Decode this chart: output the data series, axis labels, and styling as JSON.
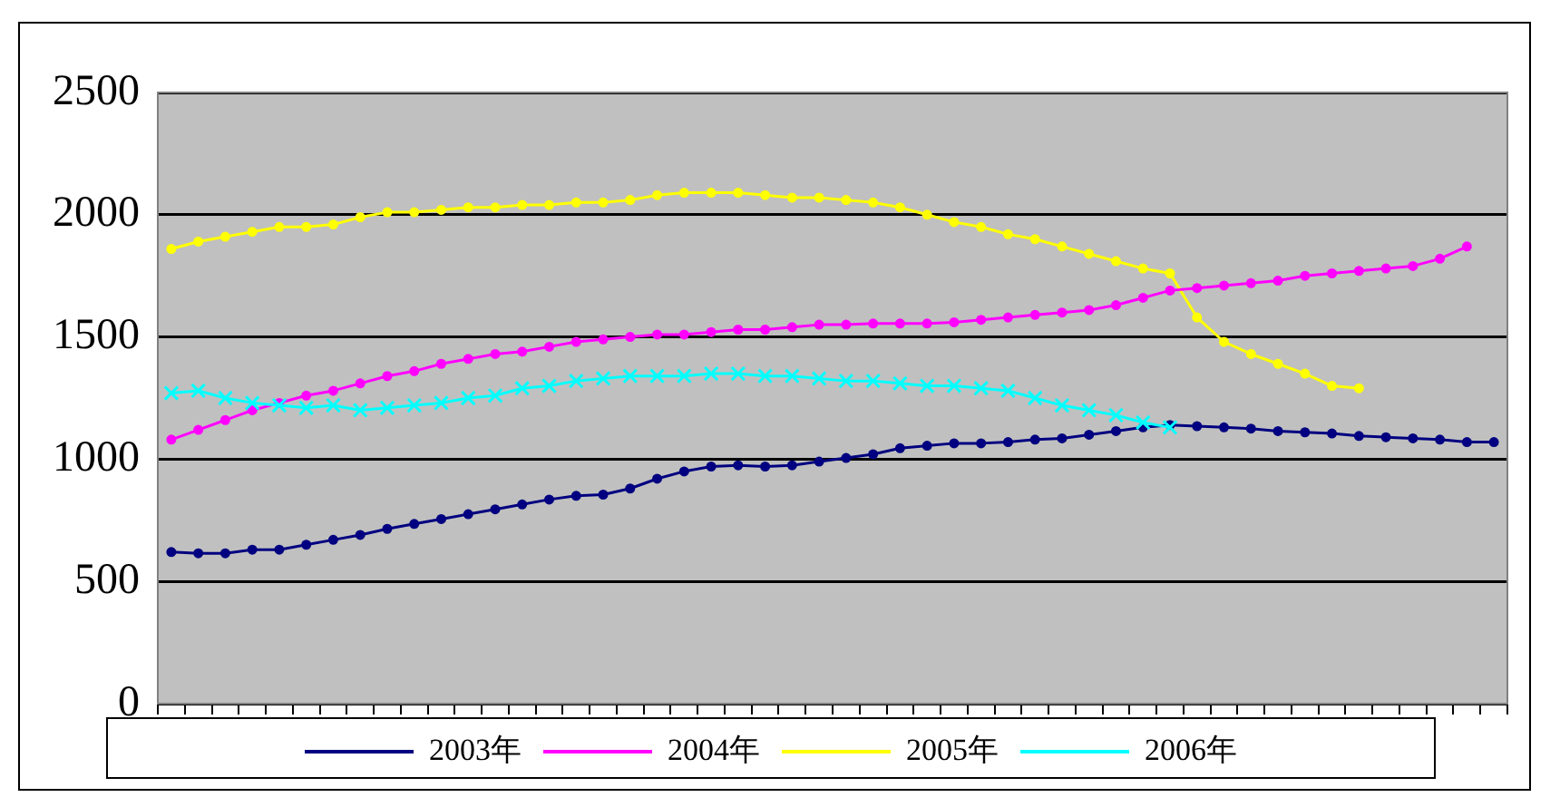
{
  "chart_data": {
    "type": "line",
    "categories": [
      null,
      null,
      null,
      null,
      null,
      null,
      null,
      null,
      null,
      null,
      null,
      null,
      null,
      null,
      null,
      null,
      null,
      null,
      null,
      null,
      null,
      null,
      null,
      null,
      null,
      null,
      null,
      null,
      null,
      null,
      null,
      null,
      null,
      null,
      null,
      null,
      null,
      null,
      null,
      null,
      null,
      null,
      null,
      null,
      null,
      null,
      null,
      null,
      null,
      null
    ],
    "series": [
      {
        "name": "2003年",
        "color": "#000080",
        "values": [
          620,
          615,
          615,
          630,
          630,
          650,
          670,
          690,
          715,
          735,
          755,
          775,
          795,
          815,
          835,
          850,
          855,
          880,
          920,
          950,
          970,
          975,
          970,
          975,
          990,
          1005,
          1020,
          1045,
          1055,
          1065,
          1065,
          1070,
          1080,
          1085,
          1100,
          1115,
          1130,
          1140,
          1135,
          1130,
          1125,
          1115,
          1110,
          1105,
          1095,
          1090,
          1085,
          1080,
          1070,
          1070
        ]
      },
      {
        "name": "2004年",
        "color": "#ff00ff",
        "values": [
          1080,
          1120,
          1160,
          1200,
          1230,
          1260,
          1280,
          1310,
          1340,
          1360,
          1390,
          1410,
          1430,
          1440,
          1460,
          1480,
          1490,
          1500,
          1510,
          1510,
          1520,
          1530,
          1530,
          1540,
          1550,
          1550,
          1555,
          1555,
          1555,
          1560,
          1570,
          1580,
          1590,
          1600,
          1610,
          1630,
          1660,
          1690,
          1700,
          1710,
          1720,
          1730,
          1750,
          1760,
          1770,
          1780,
          1790,
          1820,
          1870,
          null
        ]
      },
      {
        "name": "2005年",
        "color": "#ffff00",
        "values": [
          1860,
          1890,
          1910,
          1930,
          1950,
          1950,
          1960,
          1990,
          2010,
          2010,
          2020,
          2030,
          2030,
          2040,
          2040,
          2050,
          2050,
          2060,
          2080,
          2090,
          2090,
          2090,
          2080,
          2070,
          2070,
          2060,
          2050,
          2030,
          2000,
          1970,
          1950,
          1920,
          1900,
          1870,
          1840,
          1810,
          1780,
          1760,
          1580,
          1480,
          1430,
          1390,
          1350,
          1300,
          1290,
          null,
          null,
          null,
          null,
          null
        ]
      },
      {
        "name": "2006年",
        "color": "#00ffff",
        "marker": "cross",
        "values": [
          1270,
          1280,
          1250,
          1230,
          1220,
          1210,
          1220,
          1200,
          1210,
          1220,
          1230,
          1250,
          1260,
          1290,
          1300,
          1320,
          1330,
          1340,
          1340,
          1340,
          1350,
          1350,
          1340,
          1340,
          1330,
          1320,
          1320,
          1310,
          1300,
          1300,
          1290,
          1280,
          1250,
          1220,
          1200,
          1180,
          1150,
          1130,
          null,
          null,
          null,
          null,
          null,
          null,
          null,
          null,
          null,
          null,
          null,
          null
        ]
      }
    ],
    "ylim": [
      0,
      2500
    ],
    "yticks": [
      0,
      500,
      1000,
      1500,
      2000,
      2500
    ],
    "grid": "y",
    "legend": "bottom",
    "marker": "circle",
    "line_style": "solid"
  }
}
